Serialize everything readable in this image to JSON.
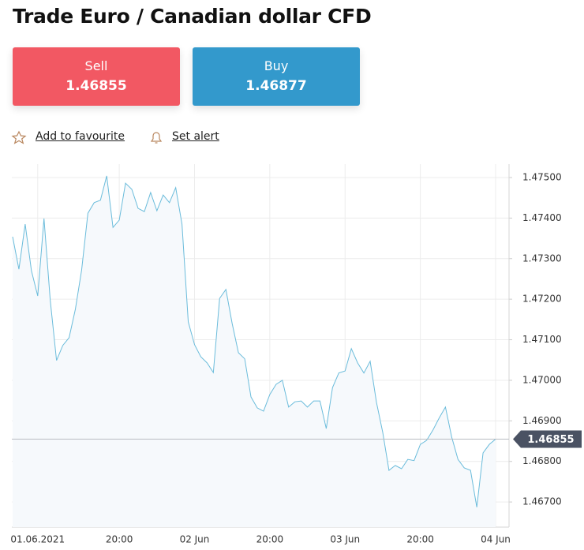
{
  "header": {
    "title": "Trade Euro / Canadian dollar CFD"
  },
  "actions": {
    "sell": {
      "label": "Sell",
      "price": "1.46855"
    },
    "buy": {
      "label": "Buy",
      "price": "1.46877"
    }
  },
  "links": {
    "favourite": "Add to favourite",
    "alert": "Set alert"
  },
  "chart_data": {
    "type": "line",
    "color": "#6bbcdb",
    "fill": "#f6f9fc",
    "grid": true,
    "categories": [
      null,
      null,
      null,
      null,
      "01.06.2021",
      null,
      null,
      null,
      null,
      null,
      null,
      null,
      null,
      null,
      null,
      null,
      null,
      "20:00",
      null,
      null,
      null,
      null,
      null,
      null,
      null,
      null,
      null,
      null,
      null,
      "02 Jun",
      null,
      null,
      null,
      null,
      null,
      null,
      null,
      null,
      null,
      null,
      null,
      "20:00",
      null,
      null,
      null,
      null,
      null,
      null,
      null,
      null,
      null,
      null,
      null,
      "03 Jun",
      null,
      null,
      null,
      null,
      null,
      null,
      null,
      null,
      null,
      null,
      null,
      "20:00",
      null,
      null,
      null,
      null,
      null,
      null,
      null,
      null,
      null,
      null,
      null,
      "04 Jun"
    ],
    "values": [
      1.47354,
      1.47274,
      1.47385,
      1.4727,
      1.47208,
      1.47399,
      1.47197,
      1.47049,
      1.47086,
      1.47105,
      1.47175,
      1.47272,
      1.47412,
      1.47438,
      1.47444,
      1.47504,
      1.47377,
      1.47395,
      1.47486,
      1.47471,
      1.47424,
      1.47416,
      1.47463,
      1.47418,
      1.47457,
      1.47438,
      1.47475,
      1.47385,
      1.47144,
      1.47088,
      1.47058,
      1.47043,
      1.47019,
      1.47202,
      1.47224,
      1.4714,
      1.47068,
      1.47053,
      1.46959,
      1.46932,
      1.46924,
      1.46965,
      1.4699,
      1.47,
      1.46934,
      1.46947,
      1.46949,
      1.46934,
      1.46949,
      1.46949,
      1.46881,
      1.46982,
      1.47018,
      1.47023,
      1.47078,
      1.47043,
      1.47018,
      1.47047,
      1.46946,
      1.46872,
      1.46778,
      1.4679,
      1.46782,
      1.46805,
      1.46802,
      1.46842,
      1.46852,
      1.46877,
      1.46907,
      1.46934,
      1.4686,
      1.46805,
      1.46784,
      1.46778,
      1.46687,
      1.46821,
      1.46842,
      1.46855
    ],
    "ylim": [
      1.46638,
      1.47533
    ],
    "yticks": [
      {
        "value": 1.475,
        "label": "1.47500"
      },
      {
        "value": 1.474,
        "label": "1.47400"
      },
      {
        "value": 1.473,
        "label": "1.47300"
      },
      {
        "value": 1.472,
        "label": "1.47200"
      },
      {
        "value": 1.471,
        "label": "1.47100"
      },
      {
        "value": 1.47,
        "label": "1.47000"
      },
      {
        "value": 1.469,
        "label": "1.46900"
      },
      {
        "value": 1.468,
        "label": "1.46800"
      },
      {
        "value": 1.467,
        "label": "1.46700"
      }
    ],
    "current_price": 1.46855
  }
}
